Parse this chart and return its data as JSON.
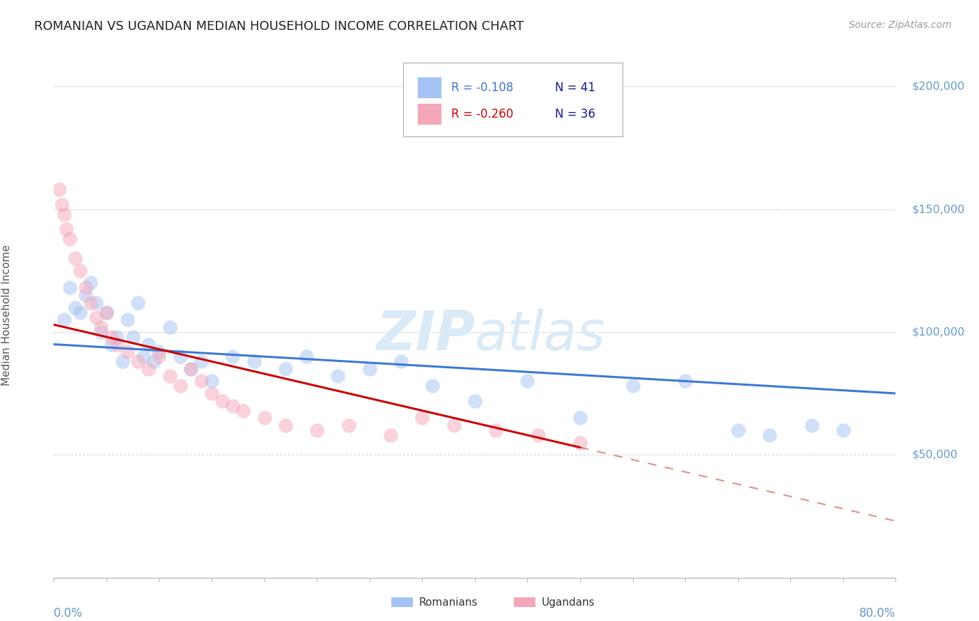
{
  "title": "ROMANIAN VS UGANDAN MEDIAN HOUSEHOLD INCOME CORRELATION CHART",
  "source": "Source: ZipAtlas.com",
  "ylabel": "Median Household Income",
  "ytick_labels": [
    "$50,000",
    "$100,000",
    "$150,000",
    "$200,000"
  ],
  "ytick_values": [
    50000,
    100000,
    150000,
    200000
  ],
  "legend_r1": "R = -0.108",
  "legend_n1": "N = 41",
  "legend_r2": "R = -0.260",
  "legend_n2": "N = 36",
  "blue_color": "#a4c2f4",
  "pink_color": "#f4a7b9",
  "blue_line_color": "#3c78d8",
  "pink_line_color": "#cc0000",
  "title_color": "#222222",
  "source_color": "#999999",
  "axis_label_color": "#6699cc",
  "watermark_color": "#daeaf7",
  "grid_color": "#cccccc",
  "romanians_x": [
    1.0,
    1.5,
    2.0,
    2.5,
    3.0,
    3.5,
    4.0,
    4.5,
    5.0,
    5.5,
    6.0,
    6.5,
    7.0,
    7.5,
    8.0,
    8.5,
    9.0,
    9.5,
    10.0,
    11.0,
    12.0,
    13.0,
    14.0,
    15.0,
    17.0,
    19.0,
    22.0,
    24.0,
    27.0,
    30.0,
    33.0,
    36.0,
    40.0,
    45.0,
    50.0,
    55.0,
    60.0,
    65.0,
    68.0,
    72.0,
    75.0
  ],
  "romanians_y": [
    105000,
    118000,
    110000,
    108000,
    115000,
    120000,
    112000,
    100000,
    108000,
    95000,
    98000,
    88000,
    105000,
    98000,
    112000,
    90000,
    95000,
    88000,
    92000,
    102000,
    90000,
    85000,
    88000,
    80000,
    90000,
    88000,
    85000,
    90000,
    82000,
    85000,
    88000,
    78000,
    72000,
    80000,
    65000,
    78000,
    80000,
    60000,
    58000,
    62000,
    60000
  ],
  "ugandans_x": [
    0.5,
    0.8,
    1.0,
    1.2,
    1.5,
    2.0,
    2.5,
    3.0,
    3.5,
    4.0,
    4.5,
    5.0,
    5.5,
    6.0,
    7.0,
    8.0,
    9.0,
    10.0,
    11.0,
    12.0,
    13.0,
    14.0,
    15.0,
    16.0,
    17.0,
    18.0,
    20.0,
    22.0,
    25.0,
    28.0,
    32.0,
    35.0,
    38.0,
    42.0,
    46.0,
    50.0
  ],
  "ugandans_y": [
    158000,
    152000,
    148000,
    142000,
    138000,
    130000,
    125000,
    118000,
    112000,
    106000,
    102000,
    108000,
    98000,
    95000,
    92000,
    88000,
    85000,
    90000,
    82000,
    78000,
    85000,
    80000,
    75000,
    72000,
    70000,
    68000,
    65000,
    62000,
    60000,
    62000,
    58000,
    65000,
    62000,
    60000,
    58000,
    55000
  ],
  "xlim": [
    0,
    80
  ],
  "ylim": [
    0,
    215000
  ],
  "blue_line_x0": 0,
  "blue_line_x1": 80,
  "blue_line_y0": 95000,
  "blue_line_y1": 75000,
  "pink_line_x0": 0,
  "pink_line_x1": 50,
  "pink_line_y0": 103000,
  "pink_line_y1": 53000,
  "pink_dash_x0": 50,
  "pink_dash_x1": 80,
  "pink_dash_y0": 53000,
  "pink_dash_y1": 23000
}
